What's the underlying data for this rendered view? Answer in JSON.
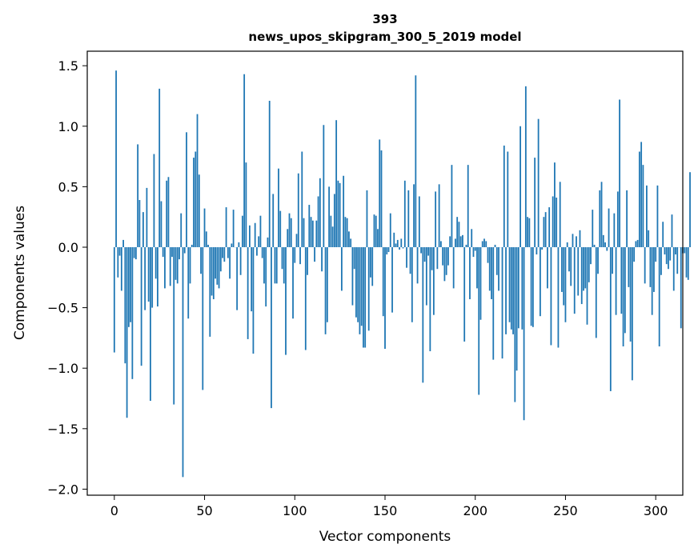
{
  "chart_data": {
    "type": "bar",
    "title": "393",
    "subtitle": "news_upos_skipgram_300_5_2019 model",
    "xlabel": "Vector components",
    "ylabel": "Components values",
    "xlim": [
      -15,
      315
    ],
    "ylim": [
      -2.05,
      1.62
    ],
    "x_ticks": [
      0,
      50,
      100,
      150,
      200,
      250,
      300
    ],
    "x_tick_labels": [
      "0",
      "50",
      "100",
      "150",
      "200",
      "250",
      "300"
    ],
    "y_ticks": [
      1.5,
      1.0,
      0.5,
      0.0,
      -0.5,
      -1.0,
      -1.5,
      -2.0
    ],
    "y_tick_labels": [
      "1.5",
      "1.0",
      "0.5",
      "0.0",
      "−0.5",
      "−1.0",
      "−1.5",
      "−2.0"
    ],
    "grid": false,
    "legend": "none",
    "bar_color": "#1f77b4",
    "values": [
      -0.87,
      1.46,
      -0.25,
      -0.07,
      -0.36,
      0.06,
      -0.96,
      -1.41,
      -0.66,
      -0.62,
      -1.09,
      -0.09,
      -0.1,
      0.85,
      0.39,
      -0.98,
      0.29,
      -0.52,
      0.49,
      -0.45,
      -1.27,
      -0.5,
      0.77,
      -0.26,
      -0.49,
      1.31,
      0.38,
      -0.08,
      -0.34,
      0.55,
      0.58,
      -0.32,
      -0.08,
      -1.3,
      -0.27,
      -0.3,
      -0.1,
      0.28,
      -1.9,
      -0.05,
      0.95,
      -0.59,
      -0.3,
      0.02,
      0.74,
      0.79,
      1.1,
      0.6,
      -0.22,
      -1.18,
      0.32,
      0.13,
      0.02,
      -0.74,
      -0.4,
      -0.43,
      -0.26,
      -0.31,
      -0.34,
      -0.2,
      -0.09,
      -0.12,
      0.33,
      -0.09,
      -0.26,
      0.03,
      0.31,
      0.0,
      -0.52,
      0.04,
      -0.23,
      0.26,
      1.43,
      0.7,
      -0.76,
      0.18,
      -0.53,
      -0.88,
      0.2,
      -0.07,
      0.09,
      0.26,
      -0.09,
      -0.3,
      -0.49,
      0.08,
      1.21,
      -1.33,
      0.44,
      -0.3,
      -0.3,
      0.65,
      0.3,
      -0.18,
      -0.3,
      -0.89,
      0.15,
      0.28,
      0.24,
      -0.59,
      -0.13,
      0.11,
      0.61,
      -0.14,
      0.79,
      0.24,
      -0.85,
      -0.23,
      0.35,
      0.25,
      0.22,
      -0.12,
      0.22,
      0.42,
      0.57,
      -0.2,
      1.01,
      -0.72,
      -0.62,
      0.5,
      0.26,
      0.17,
      0.44,
      1.05,
      0.55,
      0.53,
      -0.36,
      0.59,
      0.25,
      0.24,
      0.13,
      0.07,
      -0.48,
      -0.18,
      -0.58,
      -0.62,
      -0.72,
      -0.65,
      -0.83,
      -0.83,
      0.47,
      -0.69,
      -0.25,
      -0.32,
      0.27,
      0.26,
      0.15,
      0.89,
      0.8,
      -0.57,
      -0.84,
      -0.06,
      -0.04,
      0.28,
      -0.54,
      0.12,
      0.03,
      0.06,
      -0.02,
      0.07,
      -0.01,
      0.55,
      -0.17,
      0.47,
      -0.22,
      -0.62,
      0.52,
      1.42,
      -0.3,
      0.42,
      -0.05,
      -1.12,
      -0.12,
      -0.48,
      -0.07,
      -0.86,
      -0.19,
      -0.56,
      0.46,
      -0.18,
      0.52,
      0.05,
      -0.15,
      -0.28,
      -0.23,
      -0.15,
      0.09,
      0.68,
      -0.34,
      0.07,
      0.25,
      0.21,
      0.09,
      0.1,
      -0.78,
      0.02,
      0.68,
      -0.43,
      0.15,
      -0.08,
      -0.03,
      -0.34,
      -1.22,
      -0.6,
      0.05,
      0.07,
      0.05,
      -0.13,
      -0.36,
      -0.43,
      -0.93,
      0.02,
      -0.23,
      -0.36,
      0.0,
      -0.92,
      0.84,
      -0.72,
      0.79,
      -0.62,
      -0.68,
      -0.72,
      -1.28,
      -1.02,
      -0.67,
      1.0,
      -0.68,
      -1.43,
      1.33,
      0.25,
      0.24,
      -0.65,
      -0.66,
      0.74,
      -0.06,
      1.06,
      -0.57,
      -0.02,
      0.25,
      0.29,
      -0.34,
      0.33,
      -0.81,
      0.42,
      0.7,
      0.41,
      -0.83,
      0.54,
      -0.37,
      -0.48,
      -0.62,
      0.04,
      -0.2,
      -0.32,
      0.11,
      -0.55,
      0.09,
      -0.4,
      0.14,
      -0.47,
      -0.36,
      -0.34,
      -0.64,
      -0.29,
      -0.14,
      0.31,
      0.02,
      -0.75,
      -0.22,
      0.47,
      0.54,
      0.1,
      0.04,
      -0.03,
      0.32,
      -1.19,
      -0.22,
      0.28,
      -0.56,
      0.46,
      1.22,
      -0.55,
      -0.82,
      -0.71,
      0.47,
      -0.33,
      -0.78,
      -1.1,
      -0.12,
      0.05,
      0.06,
      0.79,
      0.87,
      0.68,
      -0.3,
      0.51,
      0.14,
      -0.33,
      -0.56,
      -0.37,
      -0.12,
      0.51,
      -0.82,
      -0.23,
      0.21,
      -0.06,
      -0.14,
      -0.18,
      -0.11,
      0.27,
      -0.36,
      -0.06,
      -0.22,
      0.0,
      -0.67,
      -0.05,
      -0.05,
      -0.25,
      -0.27,
      0.62
    ]
  }
}
